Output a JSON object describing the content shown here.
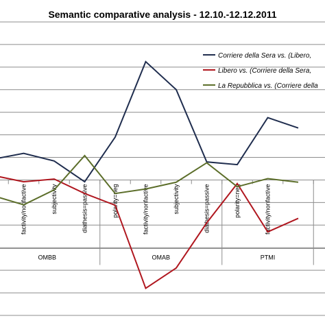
{
  "chart_data": {
    "type": "line",
    "title": "Semantic comparative analysis - 12.10.-12.12.2011",
    "categories": [
      "",
      "factivity/nonfactive",
      "subjectivity",
      "diathesis=passive",
      "polarity=neg",
      "factivity/nonfactive",
      "subjectivity",
      "diathesis=passive",
      "polarity=neg",
      "factivity/nonfactive",
      ""
    ],
    "groups": [
      {
        "label": "OMBB"
      },
      {
        "label": "OMAB"
      },
      {
        "label": "PTMI"
      }
    ],
    "gridlines": true,
    "legend_position": "top-right",
    "series": [
      {
        "name": "Corriere della Sera vs. (Libero,",
        "color": "#1f2d4e",
        "values": [
          4.6,
          5.9,
          4.2,
          -0.4,
          9.5,
          26.2,
          20.0,
          4.0,
          3.4,
          13.8,
          11.5
        ]
      },
      {
        "name": "Libero vs. (Corriere della Sera,",
        "color": "#b0171f",
        "values": [
          1.0,
          -0.4,
          0.2,
          -3.0,
          -5.6,
          -24.0,
          -19.5,
          -9.5,
          -0.8,
          -11.5,
          -8.5
        ]
      },
      {
        "name": "La Repubblica vs. (Corriere della",
        "color": "#5c6e2a",
        "values": [
          -3.5,
          -5.5,
          -2.2,
          5.4,
          -3.0,
          -2.0,
          -0.5,
          3.8,
          -1.5,
          0.3,
          -0.5
        ]
      }
    ]
  }
}
